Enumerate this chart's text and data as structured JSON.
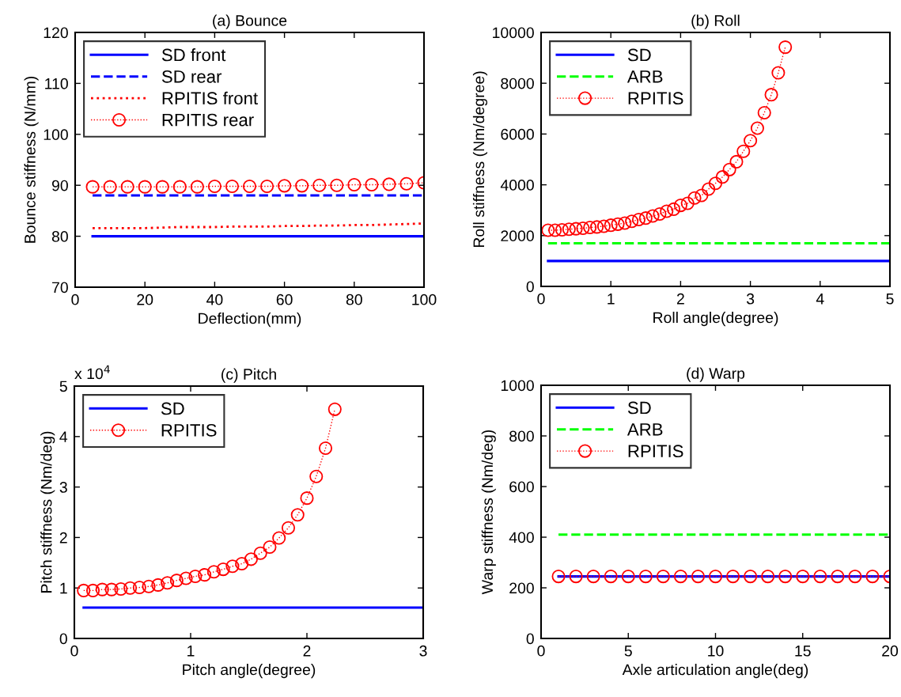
{
  "chart_data": [
    {
      "type": "line",
      "title": "(a) Bounce",
      "xlabel": "Deflection(mm)",
      "ylabel": "Bounce stiffness (N/mm)",
      "xlim": [
        0,
        100
      ],
      "xticks": [
        0,
        20,
        40,
        60,
        80,
        100
      ],
      "ylim": [
        70,
        120
      ],
      "yticks": [
        70,
        80,
        90,
        100,
        110,
        120
      ],
      "grid": false,
      "legend": "top left",
      "series": [
        {
          "name": "SD front",
          "color": "#0000ff",
          "line_style": "solid",
          "marker": "none",
          "x": [
            5,
            100
          ],
          "values": [
            80,
            80
          ]
        },
        {
          "name": "SD rear",
          "color": "#0000ff",
          "line_style": "dashed",
          "marker": "none",
          "x": [
            5,
            100
          ],
          "values": [
            88,
            88
          ]
        },
        {
          "name": "RPITIS front",
          "color": "#ff0000",
          "line_style": "dotted",
          "marker": "none",
          "x": [
            5,
            10,
            15,
            20,
            25,
            30,
            35,
            40,
            45,
            50,
            55,
            60,
            65,
            70,
            75,
            80,
            85,
            90,
            95,
            100
          ],
          "values": [
            81.6,
            81.6,
            81.6,
            81.6,
            81.7,
            81.8,
            81.8,
            81.8,
            81.9,
            81.9,
            81.9,
            82.0,
            82.0,
            82.1,
            82.1,
            82.2,
            82.2,
            82.3,
            82.4,
            82.5
          ]
        },
        {
          "name": "RPITIS rear",
          "color": "#ff0000",
          "line_style": "dotted",
          "marker": "circle",
          "x": [
            5,
            10,
            15,
            20,
            25,
            30,
            35,
            40,
            45,
            50,
            55,
            60,
            65,
            70,
            75,
            80,
            85,
            90,
            95,
            100
          ],
          "values": [
            89.7,
            89.7,
            89.7,
            89.7,
            89.7,
            89.7,
            89.7,
            89.8,
            89.8,
            89.8,
            89.8,
            89.9,
            89.9,
            90.0,
            90.0,
            90.1,
            90.1,
            90.2,
            90.3,
            90.5
          ]
        }
      ]
    },
    {
      "type": "line",
      "title": "(b) Roll",
      "xlabel": "Roll angle(degree)",
      "ylabel": "Roll stiffness (Nm/degree)",
      "xlim": [
        0,
        5
      ],
      "xticks": [
        0,
        1,
        2,
        3,
        4,
        5
      ],
      "ylim": [
        0,
        10000
      ],
      "yticks": [
        0,
        2000,
        4000,
        6000,
        8000,
        10000
      ],
      "grid": false,
      "legend": "top left",
      "series": [
        {
          "name": "SD",
          "color": "#0000ff",
          "line_style": "solid",
          "marker": "none",
          "x": [
            0.1,
            5
          ],
          "values": [
            1000,
            1000
          ]
        },
        {
          "name": "ARB",
          "color": "#00ff00",
          "line_style": "dashed",
          "marker": "none",
          "x": [
            0.1,
            5
          ],
          "values": [
            1700,
            1700
          ]
        },
        {
          "name": "RPITIS",
          "color": "#ff0000",
          "line_style": "dotted",
          "marker": "circle",
          "x": [
            0.1,
            0.2,
            0.3,
            0.4,
            0.5,
            0.6,
            0.7,
            0.8,
            0.9,
            1.0,
            1.1,
            1.2,
            1.3,
            1.4,
            1.5,
            1.6,
            1.7,
            1.8,
            1.9,
            2.0,
            2.1,
            2.2,
            2.3,
            2.4,
            2.5,
            2.6,
            2.7,
            2.8,
            2.9,
            3.0,
            3.1,
            3.2,
            3.3,
            3.4,
            3.5
          ],
          "values": [
            2210,
            2210,
            2230,
            2250,
            2270,
            2290,
            2320,
            2340,
            2370,
            2410,
            2450,
            2490,
            2560,
            2630,
            2690,
            2770,
            2850,
            2960,
            3040,
            3190,
            3270,
            3480,
            3580,
            3830,
            4060,
            4310,
            4600,
            4910,
            5320,
            5740,
            6230,
            6840,
            7550,
            8410,
            9420
          ]
        }
      ]
    },
    {
      "type": "line",
      "title": "(c) Pitch",
      "xlabel": "Pitch angle(degree)",
      "ylabel": "Pitch stiffness (Nm/deg)",
      "xlim": [
        0,
        3
      ],
      "xticks": [
        0,
        1,
        2,
        3
      ],
      "ylim": [
        0,
        5
      ],
      "yticks": [
        0,
        1,
        2,
        3,
        4,
        5
      ],
      "grid": false,
      "legend": "top left",
      "annotations": [
        "x 10$^{4}$"
      ],
      "ref_lines": [
        {
          "axis": "x",
          "value": 3,
          "color": "#ff0000",
          "line_style": "solid"
        }
      ],
      "series": [
        {
          "name": "SD",
          "color": "#0000ff",
          "line_style": "solid",
          "marker": "none",
          "x": [
            0.08,
            3
          ],
          "values": [
            0.61,
            0.61
          ]
        },
        {
          "name": "RPITIS",
          "color": "#ff0000",
          "line_style": "dotted",
          "marker": "circle",
          "x": [
            0.08,
            0.16,
            0.24,
            0.32,
            0.4,
            0.48,
            0.56,
            0.64,
            0.72,
            0.8,
            0.88,
            0.96,
            1.04,
            1.12,
            1.2,
            1.28,
            1.36,
            1.44,
            1.52,
            1.6,
            1.68,
            1.76,
            1.84,
            1.92,
            2.0,
            2.08,
            2.16,
            2.24
          ],
          "values": [
            0.95,
            0.95,
            0.97,
            0.97,
            0.98,
            1.0,
            1.01,
            1.03,
            1.06,
            1.1,
            1.15,
            1.19,
            1.23,
            1.26,
            1.32,
            1.37,
            1.43,
            1.48,
            1.57,
            1.69,
            1.81,
            1.99,
            2.19,
            2.45,
            2.78,
            3.21,
            3.77,
            4.54
          ]
        }
      ]
    },
    {
      "type": "line",
      "title": "(d) Warp",
      "xlabel": "Axle articulation angle(deg)",
      "ylabel": "Warp stiffness (Nm/deg)",
      "xlim": [
        0,
        20
      ],
      "xticks": [
        0,
        5,
        10,
        15,
        20
      ],
      "ylim": [
        0,
        1000
      ],
      "yticks": [
        0,
        200,
        400,
        600,
        800,
        1000
      ],
      "grid": false,
      "legend": "top left",
      "series": [
        {
          "name": "SD",
          "color": "#0000ff",
          "line_style": "solid",
          "marker": "none",
          "x": [
            1,
            20
          ],
          "values": [
            245,
            245
          ]
        },
        {
          "name": "ARB",
          "color": "#00ff00",
          "line_style": "dashed",
          "marker": "none",
          "x": [
            1,
            20
          ],
          "values": [
            410,
            410
          ]
        },
        {
          "name": "RPITIS",
          "color": "#ff0000",
          "line_style": "dotted",
          "marker": "circle",
          "x": [
            1,
            2,
            3,
            4,
            5,
            6,
            7,
            8,
            9,
            10,
            11,
            12,
            13,
            14,
            15,
            16,
            17,
            18,
            19,
            20
          ],
          "values": [
            245,
            245,
            245,
            245,
            245,
            245,
            245,
            245,
            245,
            245,
            245,
            245,
            245,
            245,
            245,
            245,
            245,
            245,
            245,
            245
          ]
        }
      ]
    }
  ]
}
